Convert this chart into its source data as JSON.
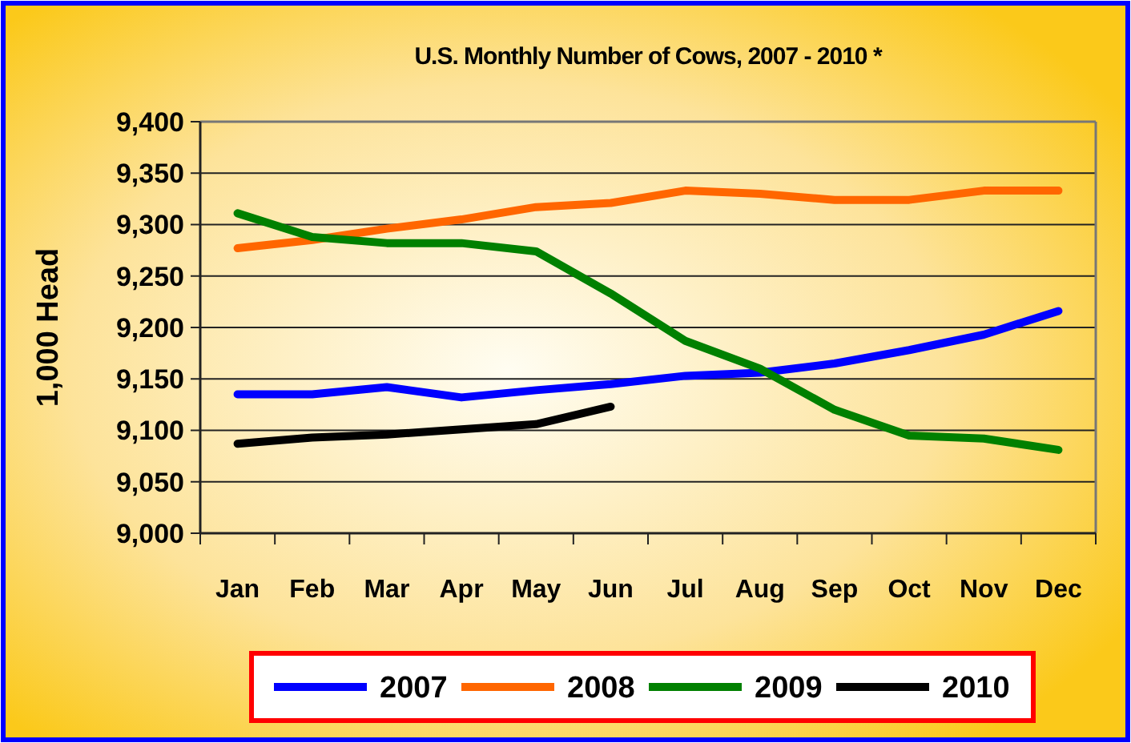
{
  "chart_data": {
    "type": "line",
    "title": "U.S. Monthly Number of Cows, 2007 - 2010 *",
    "ylabel": "1,000 Head",
    "categories": [
      "Jan",
      "Feb",
      "Mar",
      "Apr",
      "May",
      "Jun",
      "Jul",
      "Aug",
      "Sep",
      "Oct",
      "Nov",
      "Dec"
    ],
    "series": [
      {
        "name": "2007",
        "color": "#0000ff",
        "values": [
          9135,
          9135,
          9142,
          9132,
          9139,
          9145,
          9153,
          9156,
          9165,
          9178,
          9193,
          9216
        ]
      },
      {
        "name": "2008",
        "color": "#ff6600",
        "values": [
          9277,
          9285,
          9296,
          9305,
          9317,
          9321,
          9333,
          9330,
          9324,
          9324,
          9333,
          9333
        ]
      },
      {
        "name": "2009",
        "color": "#008000",
        "values": [
          9311,
          9288,
          9282,
          9282,
          9274,
          9233,
          9187,
          9160,
          9120,
          9095,
          9092,
          9081
        ]
      },
      {
        "name": "2010",
        "color": "#000000",
        "values": [
          9087,
          9093,
          9096,
          9101,
          9106,
          9123,
          null,
          null,
          null,
          null,
          null,
          null
        ]
      }
    ],
    "ylim": [
      9000,
      9400
    ],
    "yticks": [
      {
        "value": 9000,
        "label": "9,000"
      },
      {
        "value": 9050,
        "label": "9,050"
      },
      {
        "value": 9100,
        "label": "9,100"
      },
      {
        "value": 9150,
        "label": "9,150"
      },
      {
        "value": 9200,
        "label": "9,200"
      },
      {
        "value": 9250,
        "label": "9,250"
      },
      {
        "value": 9300,
        "label": "9,300"
      },
      {
        "value": 9350,
        "label": "9,350"
      },
      {
        "value": 9400,
        "label": "9,400"
      }
    ],
    "grid": "y",
    "legend": "bottom",
    "marker": "none",
    "line_style": "solid"
  }
}
